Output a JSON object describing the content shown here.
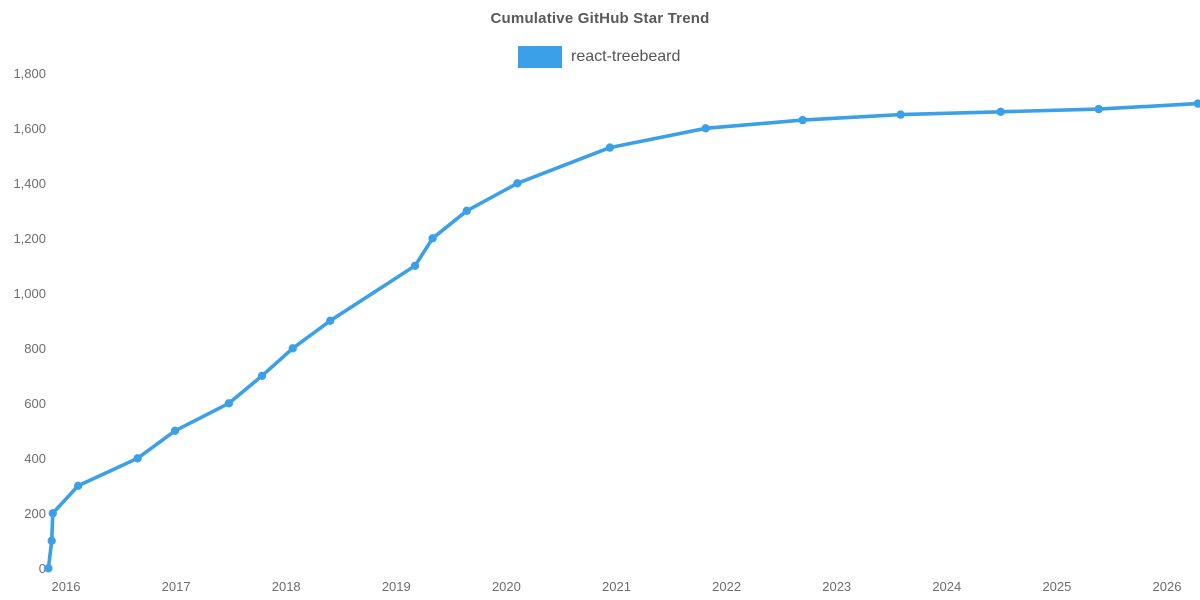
{
  "header": {
    "title": "Cumulative GitHub Star Trend"
  },
  "legend": {
    "items": [
      {
        "label": "react-treebeard",
        "color": "#3CA0E8"
      }
    ]
  },
  "colors": {
    "accent": "#3CA0E8",
    "title_text": "#5a5a5a",
    "axis_text": "#6e6e6e",
    "background": "#ffffff"
  },
  "chart_data": {
    "type": "line",
    "title": "Cumulative GitHub Star Trend",
    "xlabel": "",
    "ylabel": "",
    "grid": false,
    "legend_position": "top",
    "x_axis": {
      "tick_values": [
        2016,
        2017,
        2018,
        2019,
        2020,
        2021,
        2022,
        2023,
        2024,
        2025,
        2026
      ],
      "tick_labels": [
        "2016",
        "2017",
        "2018",
        "2019",
        "2020",
        "2021",
        "2022",
        "2023",
        "2024",
        "2025",
        "2026"
      ],
      "min": 2015.84,
      "max": 2026.3
    },
    "y_axis": {
      "tick_values": [
        0,
        200,
        400,
        600,
        800,
        1000,
        1200,
        1400,
        1600,
        1800
      ],
      "tick_labels": [
        "0",
        "200",
        "400",
        "600",
        "800",
        "1,000",
        "1,200",
        "1,400",
        "1,600",
        "1,800"
      ],
      "min": 0,
      "max": 1800
    },
    "series": [
      {
        "name": "react-treebeard",
        "color": "#3CA0E8",
        "marker": "circle",
        "points": [
          {
            "x": 2015.84,
            "y": 0
          },
          {
            "x": 2015.87,
            "y": 100
          },
          {
            "x": 2015.88,
            "y": 200
          },
          {
            "x": 2016.11,
            "y": 300
          },
          {
            "x": 2016.65,
            "y": 400
          },
          {
            "x": 2016.99,
            "y": 500
          },
          {
            "x": 2017.48,
            "y": 600
          },
          {
            "x": 2017.78,
            "y": 700
          },
          {
            "x": 2018.06,
            "y": 800
          },
          {
            "x": 2018.4,
            "y": 900
          },
          {
            "x": 2019.17,
            "y": 1100
          },
          {
            "x": 2019.33,
            "y": 1200
          },
          {
            "x": 2019.64,
            "y": 1300
          },
          {
            "x": 2020.1,
            "y": 1400
          },
          {
            "x": 2020.94,
            "y": 1530
          },
          {
            "x": 2021.81,
            "y": 1600
          },
          {
            "x": 2022.69,
            "y": 1630
          },
          {
            "x": 2023.58,
            "y": 1650
          },
          {
            "x": 2024.49,
            "y": 1660
          },
          {
            "x": 2025.38,
            "y": 1670
          },
          {
            "x": 2026.28,
            "y": 1690
          }
        ]
      }
    ]
  }
}
